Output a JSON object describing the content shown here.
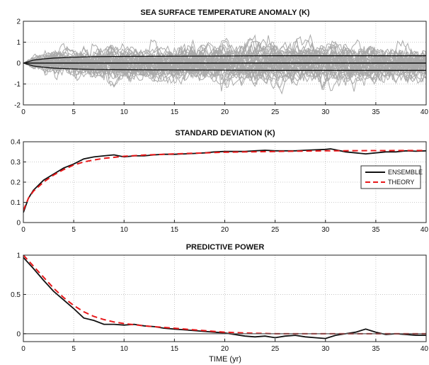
{
  "chart_data": [
    {
      "type": "line",
      "title": "SEA SURFACE TEMPERATURE ANOMALY (K)",
      "xlabel": "",
      "ylabel": "",
      "xlim": [
        0,
        40
      ],
      "ylim": [
        -2,
        2
      ],
      "xticks": [
        "0",
        "5",
        "10",
        "15",
        "20",
        "25",
        "30",
        "35",
        "40"
      ],
      "yticks": [
        "-2",
        "-1",
        "0",
        "1",
        "2"
      ],
      "ytick_values": [
        -2,
        -1,
        0,
        1,
        2
      ],
      "grid": true,
      "colors": {
        "ensemble_members": "#aaaaaa",
        "envelope": "#111111"
      },
      "members_count": 40,
      "envelope_amplitude": 0.35,
      "series": [
        {
          "role": "members",
          "x": [
            0,
            40
          ]
        },
        {
          "role": "envelope",
          "x": [
            0,
            1,
            2,
            3,
            5,
            7,
            10,
            15,
            20,
            25,
            30,
            35,
            40
          ],
          "upper": [
            0,
            0.14,
            0.2,
            0.24,
            0.28,
            0.31,
            0.32,
            0.33,
            0.34,
            0.35,
            0.35,
            0.35,
            0.35
          ],
          "lower": [
            0,
            -0.14,
            -0.2,
            -0.24,
            -0.28,
            -0.31,
            -0.32,
            -0.33,
            -0.34,
            -0.35,
            -0.35,
            -0.35,
            -0.35
          ]
        },
        {
          "role": "mean",
          "x": [
            0,
            40
          ],
          "y": [
            0,
            0
          ]
        }
      ]
    },
    {
      "type": "line",
      "title": "STANDARD DEVIATION (K)",
      "xlabel": "",
      "ylabel": "",
      "xlim": [
        0,
        40
      ],
      "ylim": [
        0,
        0.4
      ],
      "xticks": [
        "0",
        "5",
        "10",
        "15",
        "20",
        "25",
        "30",
        "35",
        "40"
      ],
      "yticks": [
        "0",
        "0.1",
        "0.2",
        "0.3",
        "0.4"
      ],
      "ytick_values": [
        0,
        0.1,
        0.2,
        0.3,
        0.4
      ],
      "grid": true,
      "legend": "right",
      "series": [
        {
          "name": "ENSEMBLE",
          "color": "#111111",
          "dash": false,
          "x": [
            0,
            0.5,
            1,
            2,
            3,
            4,
            5,
            6,
            7,
            8,
            9,
            10,
            11,
            12,
            13,
            14,
            15,
            16,
            17,
            18,
            19,
            20,
            21,
            22,
            23,
            24,
            25,
            26,
            27,
            28,
            29,
            30,
            30.5,
            31,
            32,
            33,
            34,
            35,
            36,
            37,
            38,
            39,
            40
          ],
          "y": [
            0.05,
            0.12,
            0.16,
            0.21,
            0.24,
            0.27,
            0.29,
            0.315,
            0.325,
            0.33,
            0.335,
            0.325,
            0.33,
            0.33,
            0.335,
            0.338,
            0.338,
            0.34,
            0.342,
            0.345,
            0.35,
            0.352,
            0.352,
            0.352,
            0.355,
            0.358,
            0.355,
            0.355,
            0.355,
            0.358,
            0.36,
            0.362,
            0.365,
            0.36,
            0.35,
            0.345,
            0.34,
            0.345,
            0.35,
            0.35,
            0.355,
            0.353,
            0.355
          ]
        },
        {
          "name": "THEORY",
          "color": "#e8191b",
          "dash": true,
          "x": [
            0,
            0.5,
            1,
            2,
            3,
            4,
            5,
            6,
            7,
            8,
            10,
            12,
            15,
            20,
            25,
            30,
            35,
            40
          ],
          "y": [
            0.06,
            0.12,
            0.155,
            0.2,
            0.235,
            0.262,
            0.285,
            0.3,
            0.31,
            0.318,
            0.328,
            0.334,
            0.34,
            0.348,
            0.352,
            0.355,
            0.356,
            0.357
          ]
        }
      ]
    },
    {
      "type": "line",
      "title": "PREDICTIVE POWER",
      "xlabel": "TIME (yr)",
      "ylabel": "",
      "xlim": [
        0,
        40
      ],
      "ylim": [
        -0.1,
        1
      ],
      "xticks": [
        "0",
        "5",
        "10",
        "15",
        "20",
        "25",
        "30",
        "35",
        "40"
      ],
      "yticks": [
        "0",
        "0.5",
        "1"
      ],
      "ytick_values": [
        0,
        0.5,
        1
      ],
      "grid": true,
      "series": [
        {
          "name": "ENSEMBLE",
          "color": "#111111",
          "dash": false,
          "x": [
            0,
            1,
            2,
            3,
            4,
            5,
            6,
            7,
            8,
            9,
            10,
            11,
            12,
            13,
            14,
            15,
            16,
            17,
            18,
            19,
            20,
            21,
            22,
            23,
            24,
            25,
            26,
            27,
            28,
            29,
            30,
            31,
            32,
            33,
            34,
            35,
            36,
            37,
            38,
            39,
            40
          ],
          "y": [
            0.97,
            0.83,
            0.68,
            0.54,
            0.43,
            0.32,
            0.2,
            0.17,
            0.12,
            0.12,
            0.11,
            0.12,
            0.1,
            0.09,
            0.07,
            0.06,
            0.05,
            0.04,
            0.03,
            0.02,
            0.01,
            -0.01,
            -0.03,
            -0.04,
            -0.03,
            -0.05,
            -0.03,
            -0.02,
            -0.04,
            -0.05,
            -0.06,
            -0.02,
            0.0,
            0.02,
            0.06,
            0.02,
            -0.01,
            0.0,
            -0.01,
            -0.02,
            -0.02
          ]
        },
        {
          "name": "THEORY",
          "color": "#e8191b",
          "dash": true,
          "x": [
            0,
            1,
            2,
            3,
            4,
            5,
            6,
            7,
            8,
            9,
            10,
            12,
            14,
            16,
            18,
            20,
            22,
            25,
            30,
            35,
            40
          ],
          "y": [
            1.0,
            0.86,
            0.72,
            0.58,
            0.46,
            0.36,
            0.28,
            0.22,
            0.18,
            0.15,
            0.13,
            0.1,
            0.08,
            0.06,
            0.04,
            0.02,
            0.01,
            0.0,
            0.0,
            0.0,
            0.0
          ]
        },
        {
          "role": "zero-line",
          "color": "#555555",
          "x": [
            0,
            40
          ],
          "y": [
            0,
            0
          ]
        }
      ]
    }
  ]
}
